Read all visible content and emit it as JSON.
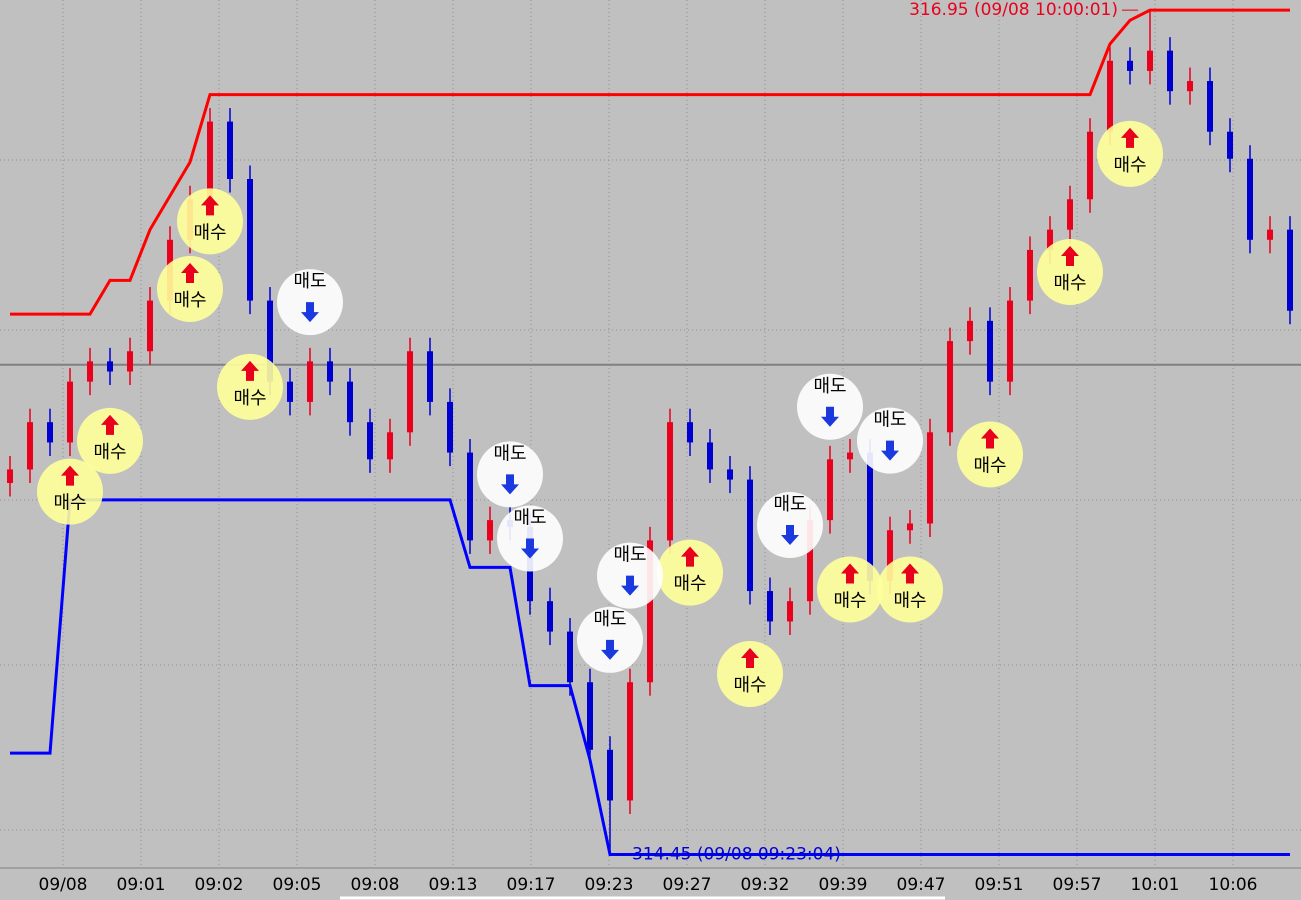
{
  "chart_data": {
    "type": "candlestick",
    "categories": [
      "09/08",
      "09:01",
      "09:02",
      "09:05",
      "09:08",
      "09:13",
      "09:17",
      "09:23",
      "09:27",
      "09:32",
      "09:39",
      "09:47",
      "09:51",
      "09:57",
      "10:01",
      "10:06"
    ],
    "open": [
      315.55,
      315.59,
      315.73,
      315.67,
      315.85,
      315.91,
      315.88,
      315.94,
      316.09,
      316.27,
      316.39,
      316.62,
      316.45,
      316.09,
      315.85,
      315.79,
      315.91,
      315.85,
      315.73,
      315.62,
      315.7,
      315.94,
      315.79,
      315.64,
      315.38,
      315.44,
      315.42,
      315.2,
      315.11,
      314.96,
      314.76,
      314.61,
      314.96,
      315.38,
      315.73,
      315.67,
      315.59,
      315.56,
      315.23,
      315.14,
      315.2,
      315.44,
      315.62,
      315.64,
      315.26,
      315.41,
      315.43,
      315.7,
      315.97,
      316.03,
      315.85,
      316.09,
      316.24,
      316.3,
      316.39,
      316.59,
      316.8,
      316.77,
      316.83,
      316.71,
      316.74,
      316.59,
      316.51,
      316.27,
      316.3
    ],
    "high": [
      315.63,
      315.77,
      315.77,
      315.89,
      315.95,
      315.95,
      315.98,
      316.13,
      316.31,
      316.43,
      316.66,
      316.66,
      316.49,
      316.13,
      315.89,
      315.95,
      315.95,
      315.89,
      315.77,
      315.74,
      315.98,
      315.98,
      315.83,
      315.68,
      315.48,
      315.48,
      315.46,
      315.24,
      315.15,
      315.0,
      314.8,
      315.0,
      315.42,
      315.77,
      315.77,
      315.71,
      315.63,
      315.6,
      315.27,
      315.24,
      315.48,
      315.66,
      315.68,
      315.68,
      315.45,
      315.47,
      315.74,
      316.01,
      316.07,
      316.07,
      316.13,
      316.28,
      316.34,
      316.43,
      316.63,
      316.84,
      316.84,
      316.95,
      316.87,
      316.78,
      316.78,
      316.63,
      316.55,
      316.34,
      316.34
    ],
    "low": [
      315.51,
      315.55,
      315.63,
      315.63,
      315.81,
      315.84,
      315.84,
      315.9,
      316.05,
      316.23,
      316.35,
      316.41,
      316.05,
      315.81,
      315.75,
      315.75,
      315.81,
      315.69,
      315.58,
      315.58,
      315.66,
      315.75,
      315.6,
      315.34,
      315.34,
      315.38,
      315.16,
      315.07,
      314.92,
      314.72,
      314.45,
      314.57,
      314.92,
      315.34,
      315.63,
      315.55,
      315.52,
      315.19,
      315.1,
      315.1,
      315.16,
      315.4,
      315.58,
      315.22,
      315.22,
      315.37,
      315.39,
      315.66,
      315.93,
      315.81,
      315.81,
      316.05,
      316.2,
      316.26,
      316.35,
      316.55,
      316.73,
      316.73,
      316.67,
      316.67,
      316.55,
      316.47,
      316.23,
      316.23,
      316.02
    ],
    "close": [
      315.59,
      315.73,
      315.67,
      315.85,
      315.91,
      315.88,
      315.94,
      316.09,
      316.27,
      316.39,
      316.62,
      316.45,
      316.09,
      315.85,
      315.79,
      315.91,
      315.85,
      315.73,
      315.62,
      315.7,
      315.94,
      315.79,
      315.64,
      315.38,
      315.44,
      315.42,
      315.2,
      315.11,
      314.96,
      314.76,
      314.61,
      314.96,
      315.38,
      315.73,
      315.67,
      315.59,
      315.56,
      315.23,
      315.14,
      315.2,
      315.44,
      315.62,
      315.64,
      315.26,
      315.41,
      315.43,
      315.7,
      315.97,
      316.03,
      315.85,
      316.09,
      316.24,
      316.3,
      316.39,
      316.59,
      316.8,
      316.77,
      316.83,
      316.71,
      316.74,
      316.59,
      316.51,
      316.27,
      316.3,
      316.06
    ],
    "up_color": "#e8001c",
    "down_color": "#0000d0",
    "upper_band": {
      "color": "#ff0000",
      "values": [
        316.05,
        316.05,
        316.05,
        316.05,
        316.05,
        316.15,
        316.15,
        316.3,
        316.4,
        316.5,
        316.7,
        316.7,
        316.7,
        316.7,
        316.7,
        316.7,
        316.7,
        316.7,
        316.7,
        316.7,
        316.7,
        316.7,
        316.7,
        316.7,
        316.7,
        316.7,
        316.7,
        316.7,
        316.7,
        316.7,
        316.7,
        316.7,
        316.7,
        316.7,
        316.7,
        316.7,
        316.7,
        316.7,
        316.7,
        316.7,
        316.7,
        316.7,
        316.7,
        316.7,
        316.7,
        316.7,
        316.7,
        316.7,
        316.7,
        316.7,
        316.7,
        316.7,
        316.7,
        316.7,
        316.7,
        316.85,
        316.92,
        316.95,
        316.95,
        316.95,
        316.95,
        316.95,
        316.95,
        316.95,
        316.95
      ]
    },
    "lower_band": {
      "color": "#0000ff",
      "values": [
        314.75,
        314.75,
        314.75,
        315.5,
        315.5,
        315.5,
        315.5,
        315.5,
        315.5,
        315.5,
        315.5,
        315.5,
        315.5,
        315.5,
        315.5,
        315.5,
        315.5,
        315.5,
        315.5,
        315.5,
        315.5,
        315.5,
        315.5,
        315.3,
        315.3,
        315.3,
        314.95,
        314.95,
        314.95,
        314.73,
        314.45,
        314.45,
        314.45,
        314.45,
        314.45,
        314.45,
        314.45,
        314.45,
        314.45,
        314.45,
        314.45,
        314.45,
        314.45,
        314.45,
        314.45,
        314.45,
        314.45,
        314.45,
        314.45,
        314.45,
        314.45,
        314.45,
        314.45,
        314.45,
        314.45,
        314.45,
        314.45,
        314.45,
        314.45,
        314.45,
        314.45,
        314.45,
        314.45,
        314.45,
        314.45
      ]
    },
    "reference": 315.9,
    "buy_label": "매수",
    "sell_label": "매도",
    "buy_signals": [
      {
        "index": 3,
        "price": 315.56
      },
      {
        "index": 5,
        "price": 315.71
      },
      {
        "index": 9,
        "price": 316.16
      },
      {
        "index": 10,
        "price": 316.36
      },
      {
        "index": 12,
        "price": 315.87
      },
      {
        "index": 34,
        "price": 315.32
      },
      {
        "index": 37,
        "price": 315.02
      },
      {
        "index": 42,
        "price": 315.27
      },
      {
        "index": 45,
        "price": 315.27
      },
      {
        "index": 49,
        "price": 315.67
      },
      {
        "index": 53,
        "price": 316.21
      },
      {
        "index": 56,
        "price": 316.56
      }
    ],
    "sell_signals": [
      {
        "index": 15,
        "price": 316.05
      },
      {
        "index": 25,
        "price": 315.54
      },
      {
        "index": 26,
        "price": 315.35
      },
      {
        "index": 31,
        "price": 315.24
      },
      {
        "index": 30,
        "price": 315.05
      },
      {
        "index": 41,
        "price": 315.74
      },
      {
        "index": 39,
        "price": 315.39
      },
      {
        "index": 44,
        "price": 315.64
      }
    ],
    "max_label": "316.95 (09/08 10:00:01)",
    "min_label": "314.45 (09/08 09:23:04)",
    "ylim": [
      314.41,
      316.98
    ]
  }
}
